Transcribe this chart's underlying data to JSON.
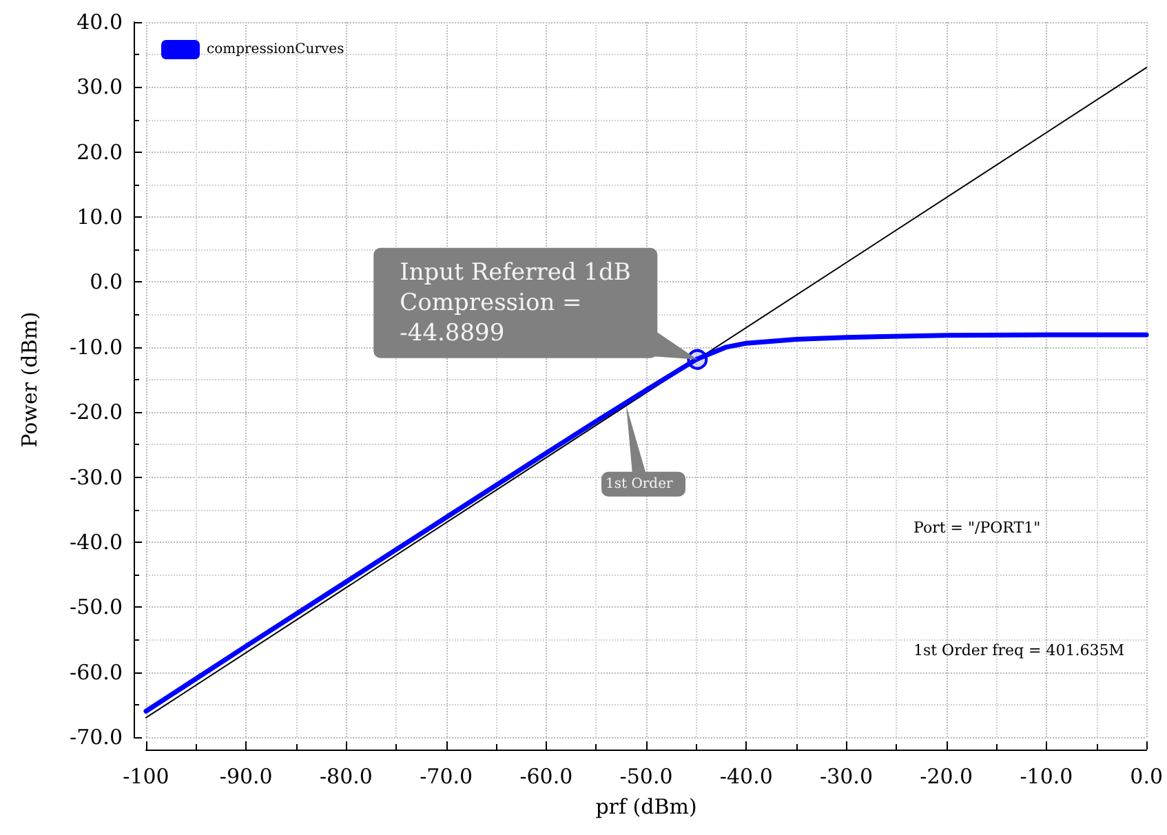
{
  "chart_data": {
    "type": "line",
    "xlabel": "prf (dBm)",
    "ylabel": "Power (dBm)",
    "x": [
      -100,
      -90,
      -80,
      -70,
      -60,
      -55,
      -50,
      -45,
      -42,
      -40,
      -35,
      -30,
      -20,
      -10,
      0
    ],
    "series": [
      {
        "name": "compressionCurves",
        "color": "#0000ff",
        "values": [
          -66,
          -56,
          -46.1,
          -36.2,
          -26.3,
          -21.4,
          -16.6,
          -11.9,
          -10,
          -9.4,
          -8.8,
          -8.5,
          -8.2,
          -8.1,
          -8.1
        ]
      },
      {
        "color": "#000000",
        "x": [
          -100,
          0
        ],
        "values": [
          -67,
          33
        ]
      }
    ],
    "xlim": [
      -100,
      0
    ],
    "ylim": [
      -70,
      40
    ],
    "xticks": [
      {
        "value": -100,
        "label": "-100"
      },
      {
        "value": -90,
        "label": "-90.0"
      },
      {
        "value": -80,
        "label": "-80.0"
      },
      {
        "value": -70,
        "label": "-70.0"
      },
      {
        "value": -60,
        "label": "-60.0"
      },
      {
        "value": -50,
        "label": "-50.0"
      },
      {
        "value": -40,
        "label": "-40.0"
      },
      {
        "value": -30,
        "label": "-30.0"
      },
      {
        "value": -20,
        "label": "-20.0"
      },
      {
        "value": -10,
        "label": "-10.0"
      },
      {
        "value": 0,
        "label": "0.0"
      }
    ],
    "yticks": [
      {
        "value": -70,
        "label": "-70.0"
      },
      {
        "value": -60,
        "label": "-60.0"
      },
      {
        "value": -50,
        "label": "-50.0"
      },
      {
        "value": -40,
        "label": "-40.0"
      },
      {
        "value": -30,
        "label": "-30.0"
      },
      {
        "value": -20,
        "label": "-20.0"
      },
      {
        "value": -10,
        "label": "-10.0"
      },
      {
        "value": 0,
        "label": "0.0"
      },
      {
        "value": 10,
        "label": "10.0"
      },
      {
        "value": 20,
        "label": "20.0"
      },
      {
        "value": 30,
        "label": "30.0"
      },
      {
        "value": 40,
        "label": "40.0"
      }
    ],
    "annotations": [
      {
        "text": "Input Referred 1dB\nCompression =\n-44.8899",
        "x": -44.8899,
        "y": -11.9
      },
      {
        "text": "1st Order",
        "x": -52,
        "y": -19
      },
      "Port = \"/PORT1\"",
      "1st Order freq = 401.635M"
    ],
    "grid": true,
    "legend": "top left",
    "marker": "none",
    "line_style": "solid"
  }
}
